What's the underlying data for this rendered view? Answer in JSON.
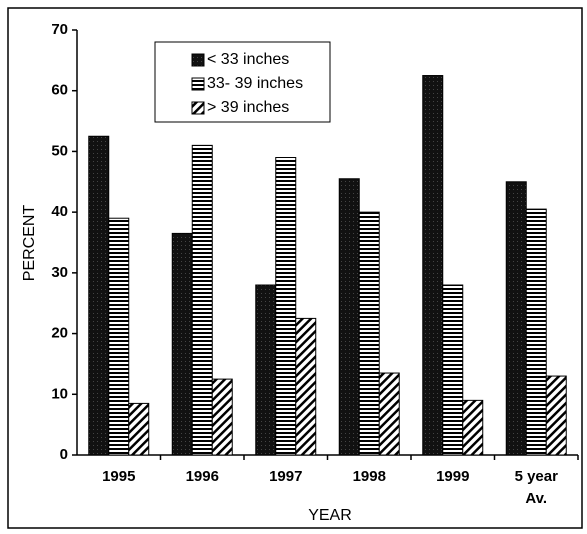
{
  "chart_data": {
    "type": "bar",
    "x_label": "YEAR",
    "y_label": "PERCENT",
    "categories": [
      "1995",
      "1996",
      "1997",
      "1998",
      "1999",
      "5 year Av."
    ],
    "series": [
      {
        "name": "< 33 inches",
        "color": "#111111",
        "values": [
          52.5,
          36.5,
          28,
          45.5,
          62.5,
          45
        ]
      },
      {
        "name": "33- 39 inches",
        "color": "#ffffff",
        "values": [
          39,
          51,
          49,
          40,
          28,
          40.5
        ]
      },
      {
        "name": "> 39 inches",
        "color": "#ffffff",
        "values": [
          8.5,
          12.5,
          22.5,
          13.5,
          9,
          13
        ]
      }
    ],
    "ylim": [
      0,
      70
    ],
    "yticks": [
      0,
      10,
      20,
      30,
      40,
      50,
      60,
      70
    ],
    "legend": "top"
  }
}
